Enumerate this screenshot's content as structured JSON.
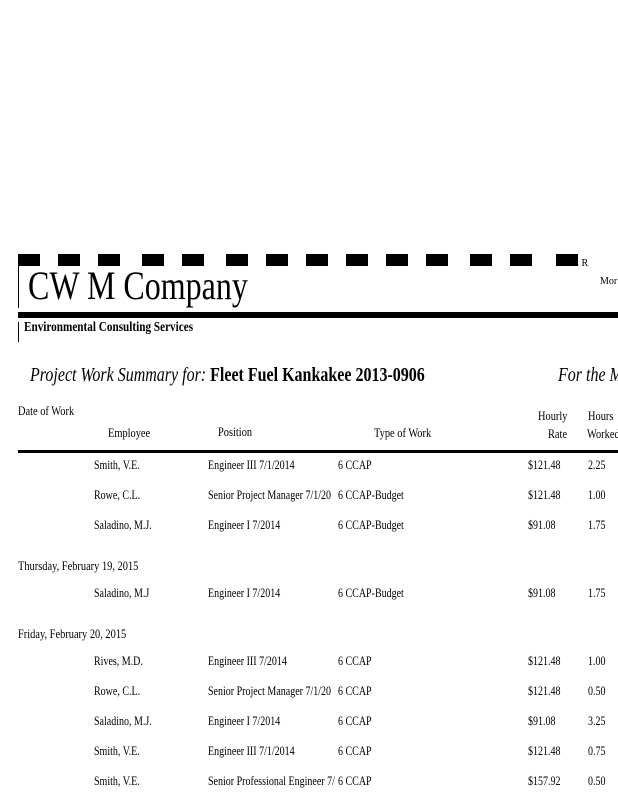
{
  "header": {
    "company": "CW M Company",
    "tagline": "Environmental Consulting Services",
    "address_fragment": "W. R",
    "address_fragment2": "Mor"
  },
  "title": {
    "prefix": "Project Work Summary for:",
    "project": "Fleet Fuel Kankakee 2013-0906",
    "period_fragment": "For the M"
  },
  "columns": {
    "date": "Date of Work",
    "employee": "Employee",
    "position": "Position",
    "type": "Type of Work",
    "rate_1": "Hourly",
    "rate_2": "Rate",
    "hours_1": "Hours",
    "hours_2": "Worked"
  },
  "groups": [
    {
      "date": "",
      "rows": [
        {
          "employee": "Smith, V.E.",
          "position": "Engineer III 7/1/2014",
          "type": "6 CCAP",
          "rate": "$121.48",
          "hours": "2.25"
        },
        {
          "employee": "Rowe, C.L.",
          "position": "Senior Project Manager 7/1/20",
          "type": "6 CCAP-Budget",
          "rate": "$121.48",
          "hours": "1.00"
        },
        {
          "employee": "Saladino, M.J.",
          "position": "Engineer I 7/2014",
          "type": "6 CCAP-Budget",
          "rate": "$91.08",
          "hours": "1.75"
        }
      ]
    },
    {
      "date": "Thursday, February 19, 2015",
      "rows": [
        {
          "employee": "Saladino, M.J",
          "position": "Engineer I 7/2014",
          "type": "6 CCAP-Budget",
          "rate": "$91.08",
          "hours": "1.75"
        }
      ]
    },
    {
      "date": "Friday, February 20, 2015",
      "rows": [
        {
          "employee": "Rives, M.D.",
          "position": "Engineer III 7/2014",
          "type": "6 CCAP",
          "rate": "$121.48",
          "hours": "1.00"
        },
        {
          "employee": "Rowe, C.L.",
          "position": "Senior Project Manager 7/1/20",
          "type": "6 CCAP",
          "rate": "$121.48",
          "hours": "0.50"
        },
        {
          "employee": "Saladino, M.J.",
          "position": "Engineer I 7/2014",
          "type": "6 CCAP",
          "rate": "$91.08",
          "hours": "3.25"
        },
        {
          "employee": "Smith, V.E.",
          "position": "Engineer III 7/1/2014",
          "type": "6 CCAP",
          "rate": "$121.48",
          "hours": "0.75"
        },
        {
          "employee": "Smith, V.E.",
          "position": "Senior Professional Engineer 7/",
          "type": "6 CCAP",
          "rate": "$157.92",
          "hours": "0.50"
        }
      ]
    }
  ]
}
